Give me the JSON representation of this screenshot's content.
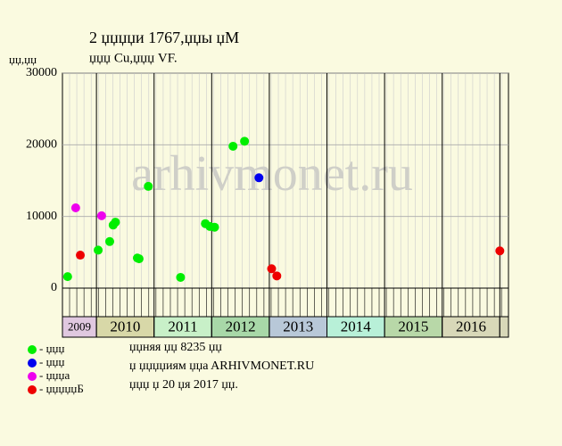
{
  "chart_data": {
    "type": "scatter",
    "title": "2 џџџџи 1767,џџы џM",
    "subtitle": "џџџ Cu,џџџ VF.",
    "y_label": "џџ,џџ",
    "watermark": "arhivmonet.ru",
    "notes": [
      "џџняя џџ 8235 џџ",
      "џ џџџџиям џџa ARHIVMONET.RU",
      "џџџ џ 20 џя 2017 џџ."
    ],
    "xlim": [
      2009.41,
      2017.15
    ],
    "xticks": [
      2010,
      2011,
      2012,
      2013,
      2014,
      2015,
      2016,
      2017
    ],
    "year_labels": [
      "2009",
      "2010",
      "2011",
      "2012",
      "2013",
      "2014",
      "2015",
      "2016"
    ],
    "year_colors": [
      "#e0c8e0",
      "#d8d8a8",
      "#c8f0c8",
      "#a8d8a8",
      "#b8c8d8",
      "#b8f0d8",
      "#b8d8a8",
      "#d8d8b8"
    ],
    "ylim": [
      0,
      30000
    ],
    "yticks": [
      0,
      10000,
      20000,
      30000
    ],
    "grid": true,
    "series": [
      {
        "name": "- џџџ",
        "color": "#00ee00",
        "x": [
          2009.5,
          2010.03,
          2010.23,
          2010.29,
          2010.33,
          2010.71,
          2010.74,
          2010.9,
          2011.46,
          2011.89,
          2011.97,
          2012.05,
          2012.37,
          2012.57
        ],
        "values": [
          1600,
          5300,
          6500,
          8800,
          9200,
          4200,
          4100,
          14200,
          1500,
          9000,
          8600,
          8500,
          19800,
          20500
        ]
      },
      {
        "name": "- џџџ",
        "color": "#0000ee",
        "x": [
          2012.82
        ],
        "values": [
          15400
        ]
      },
      {
        "name": "- џџџa",
        "color": "#ee00ee",
        "x": [
          2009.64,
          2010.09
        ],
        "values": [
          11200,
          10100
        ]
      },
      {
        "name": "- џџџџџБ",
        "color": "#ee0000",
        "x": [
          2009.72,
          2013.04,
          2013.13,
          2017.0
        ],
        "values": [
          4600,
          2700,
          1700,
          5200
        ]
      }
    ]
  }
}
